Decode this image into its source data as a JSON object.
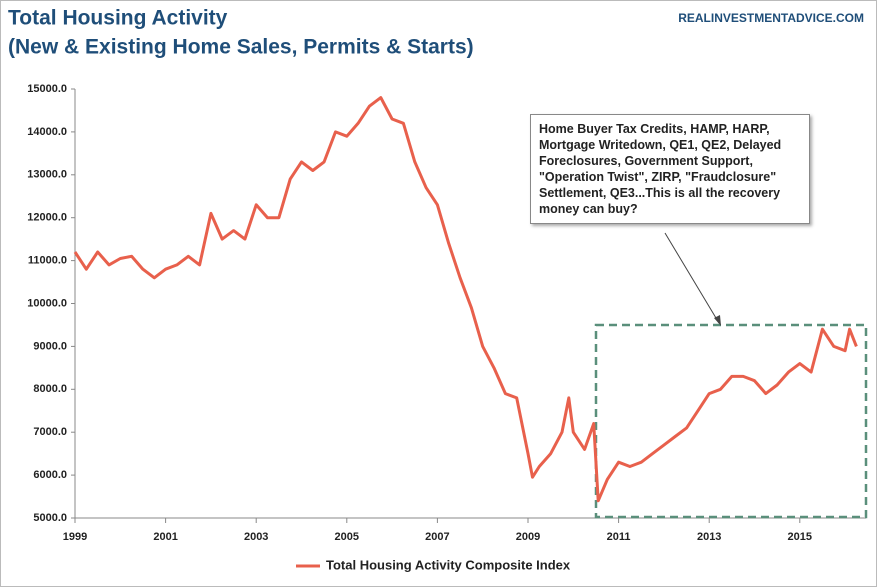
{
  "chart_data": {
    "type": "line",
    "title": "Total Housing Activity",
    "subtitle": "(New & Existing Home Sales, Permits & Starts)",
    "source": "REALINVESTMENTADVICE.COM",
    "annotation": "Home Buyer Tax Credits, HAMP, HARP, Mortgage Writedown, QE1, QE2, Delayed Foreclosures, Government Support, \"Operation Twist\", ZIRP, \"Fraudclosure\" Settlement, QE3...This is all the recovery money can buy?",
    "x": [
      1999.0,
      1999.25,
      1999.5,
      1999.75,
      2000.0,
      2000.25,
      2000.5,
      2000.75,
      2001.0,
      2001.25,
      2001.5,
      2001.75,
      2002.0,
      2002.25,
      2002.5,
      2002.75,
      2003.0,
      2003.25,
      2003.5,
      2003.75,
      2004.0,
      2004.25,
      2004.5,
      2004.75,
      2005.0,
      2005.25,
      2005.5,
      2005.75,
      2006.0,
      2006.25,
      2006.5,
      2006.75,
      2007.0,
      2007.25,
      2007.5,
      2007.75,
      2008.0,
      2008.25,
      2008.5,
      2008.75,
      2009.0,
      2009.1,
      2009.25,
      2009.5,
      2009.75,
      2009.9,
      2010.0,
      2010.25,
      2010.45,
      2010.55,
      2010.75,
      2011.0,
      2011.25,
      2011.5,
      2011.75,
      2012.0,
      2012.25,
      2012.5,
      2012.75,
      2013.0,
      2013.25,
      2013.5,
      2013.75,
      2014.0,
      2014.25,
      2014.5,
      2014.75,
      2015.0,
      2015.25,
      2015.5,
      2015.75,
      2016.0,
      2016.1,
      2016.25
    ],
    "series": [
      {
        "name": "Total Housing Activity Composite Index",
        "color": "#e8604c",
        "values": [
          11200,
          10800,
          11200,
          10900,
          11050,
          11100,
          10800,
          10600,
          10800,
          10900,
          11100,
          10900,
          12100,
          11500,
          11700,
          11500,
          12300,
          12000,
          12000,
          12900,
          13300,
          13100,
          13300,
          14000,
          13900,
          14200,
          14600,
          14800,
          14300,
          14200,
          13300,
          12700,
          12300,
          11400,
          10600,
          9900,
          9000,
          8500,
          7900,
          7800,
          6500,
          5950,
          6200,
          6500,
          7000,
          7800,
          7000,
          6600,
          7200,
          5400,
          5900,
          6300,
          6200,
          6300,
          6500,
          6700,
          6900,
          7100,
          7500,
          7900,
          8000,
          8300,
          8300,
          8200,
          7900,
          8100,
          8400,
          8600,
          8400,
          9400,
          9000,
          8900,
          9400,
          9000
        ]
      }
    ],
    "xlim": [
      1999,
      2016.4
    ],
    "xticks": [
      1999,
      2001,
      2003,
      2005,
      2007,
      2009,
      2011,
      2013,
      2015
    ],
    "ylim": [
      5000,
      15000
    ],
    "yticks": [
      {
        "value": 5000,
        "label": "5000.0"
      },
      {
        "value": 6000,
        "label": "6000.0"
      },
      {
        "value": 7000,
        "label": "7000.0"
      },
      {
        "value": 8000,
        "label": "8000.0"
      },
      {
        "value": 9000,
        "label": "9000.0"
      },
      {
        "value": 10000,
        "label": "10000.0"
      },
      {
        "value": 11000,
        "label": "11000.0"
      },
      {
        "value": 12000,
        "label": "12000.0"
      },
      {
        "value": 13000,
        "label": "13000.0"
      },
      {
        "value": 14000,
        "label": "14000.0"
      },
      {
        "value": 15000,
        "label": "15000.0"
      }
    ],
    "grid": false,
    "legend": "bottom"
  }
}
